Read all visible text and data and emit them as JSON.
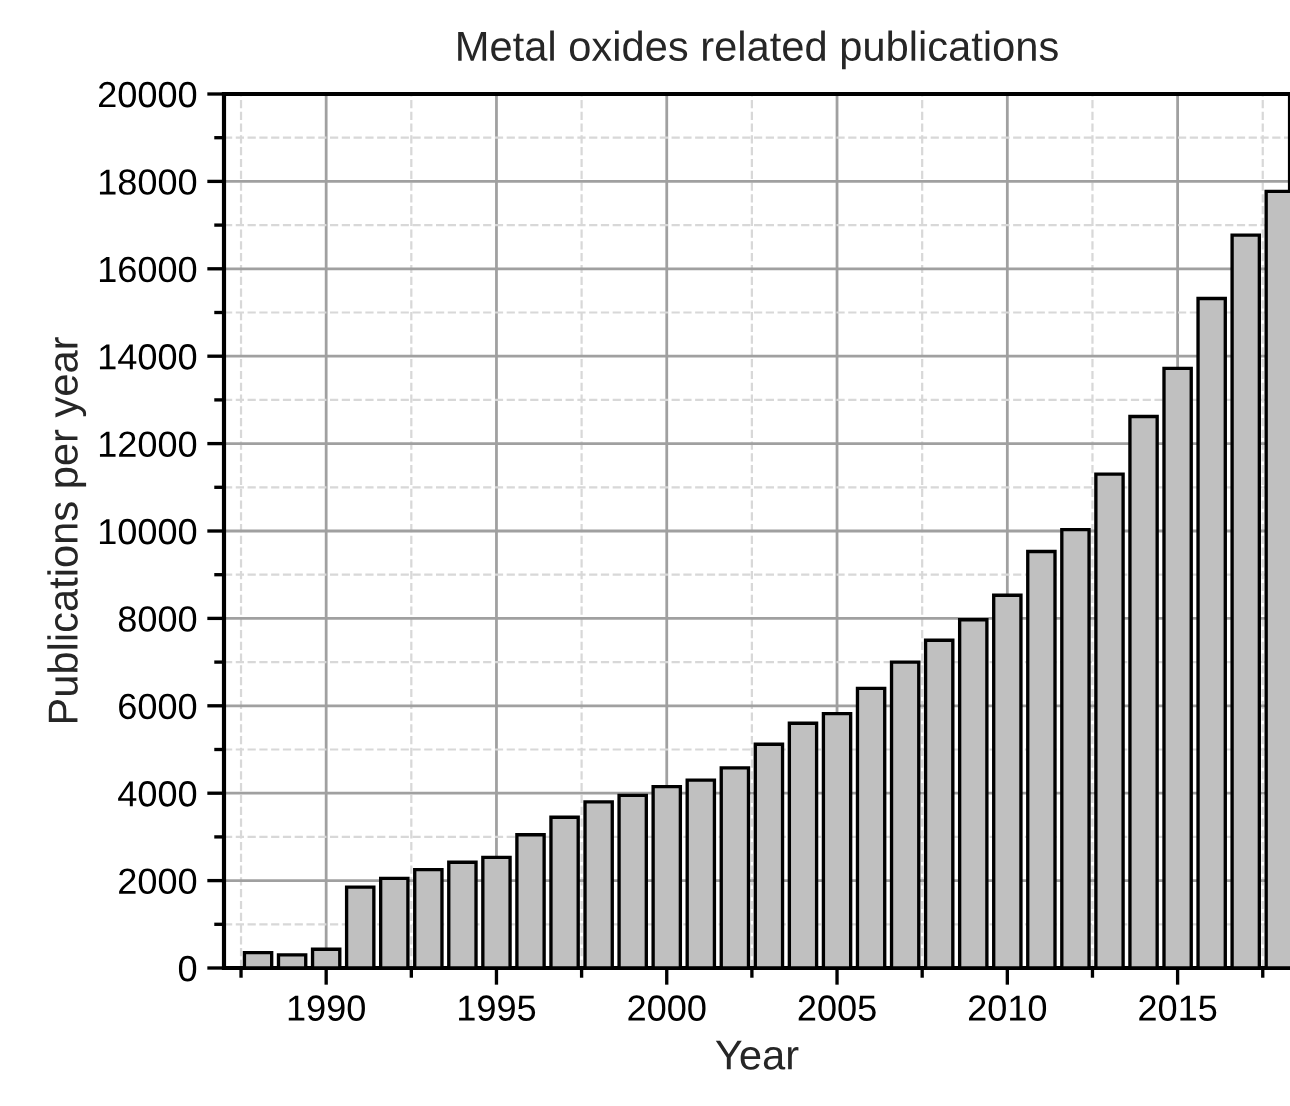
{
  "chart_data": {
    "type": "bar",
    "title": "Metal oxides related publications",
    "xlabel": "Year",
    "ylabel": "Publications per year",
    "x": [
      1988,
      1989,
      1990,
      1991,
      1992,
      1993,
      1994,
      1995,
      1996,
      1997,
      1998,
      1999,
      2000,
      2001,
      2002,
      2003,
      2004,
      2005,
      2006,
      2007,
      2008,
      2009,
      2010,
      2011,
      2012,
      2013,
      2014,
      2015,
      2016,
      2017,
      2018
    ],
    "values": [
      350,
      300,
      430,
      1850,
      2050,
      2250,
      2420,
      2530,
      3050,
      3450,
      3800,
      3950,
      4150,
      4300,
      4580,
      5120,
      5600,
      5820,
      6400,
      7000,
      7500,
      7970,
      8530,
      9530,
      10030,
      11300,
      12620,
      13720,
      15320,
      16770,
      17770
    ],
    "color": "#c0c0c0",
    "xlim": [
      1987,
      2018.3
    ],
    "xticks": [
      {
        "value": 1987.5,
        "label": null
      },
      1990,
      {
        "value": 1992.5,
        "label": null
      },
      1995,
      {
        "value": 1997.5,
        "label": null
      },
      2000,
      {
        "value": 2002.5,
        "label": null
      },
      2005,
      {
        "value": 2007.5,
        "label": null
      },
      2010,
      {
        "value": 2012.5,
        "label": null
      },
      2015,
      {
        "value": 2017.5,
        "label": null
      }
    ],
    "ylim": [
      0,
      20000
    ],
    "yticks": [
      0,
      {
        "value": 1000,
        "label": null
      },
      2000,
      {
        "value": 3000,
        "label": null
      },
      4000,
      {
        "value": 5000,
        "label": null
      },
      6000,
      {
        "value": 7000,
        "label": null
      },
      8000,
      {
        "value": 9000,
        "label": null
      },
      10000,
      {
        "value": 11000,
        "label": null
      },
      12000,
      {
        "value": 13000,
        "label": null
      },
      14000,
      {
        "value": 15000,
        "label": null
      },
      16000,
      {
        "value": 17000,
        "label": null
      },
      18000,
      {
        "value": 19000,
        "label": null
      },
      20000
    ],
    "grid": true,
    "legend": false
  }
}
